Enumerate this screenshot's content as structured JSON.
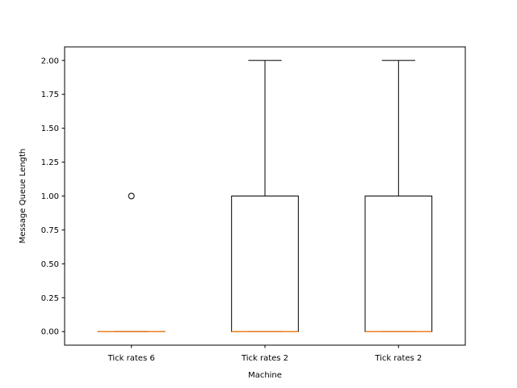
{
  "chart_data": {
    "type": "boxplot",
    "title": "",
    "xlabel": "Machine",
    "ylabel": "Message Queue Length",
    "ylim": [
      -0.1,
      2.1
    ],
    "yticks": [
      0.0,
      0.25,
      0.5,
      0.75,
      1.0,
      1.25,
      1.5,
      1.75,
      2.0
    ],
    "ytick_labels": [
      "0.00",
      "0.25",
      "0.50",
      "0.75",
      "1.00",
      "1.25",
      "1.50",
      "1.75",
      "2.00"
    ],
    "categories": [
      "Tick rates 6",
      "Tick rates 2",
      "Tick rates 2"
    ],
    "boxes": [
      {
        "label": "Tick rates 6",
        "whisker_low": 0,
        "q1": 0,
        "median": 0,
        "q3": 0,
        "whisker_high": 0,
        "fliers": [
          1
        ]
      },
      {
        "label": "Tick rates 2",
        "whisker_low": 0,
        "q1": 0,
        "median": 0,
        "q3": 1,
        "whisker_high": 2,
        "fliers": []
      },
      {
        "label": "Tick rates 2",
        "whisker_low": 0,
        "q1": 0,
        "median": 0,
        "q3": 1,
        "whisker_high": 2,
        "fliers": []
      }
    ],
    "grid": false,
    "colors": {
      "box": "#000000",
      "median": "#ff7f0e",
      "flier": "#000000"
    }
  }
}
